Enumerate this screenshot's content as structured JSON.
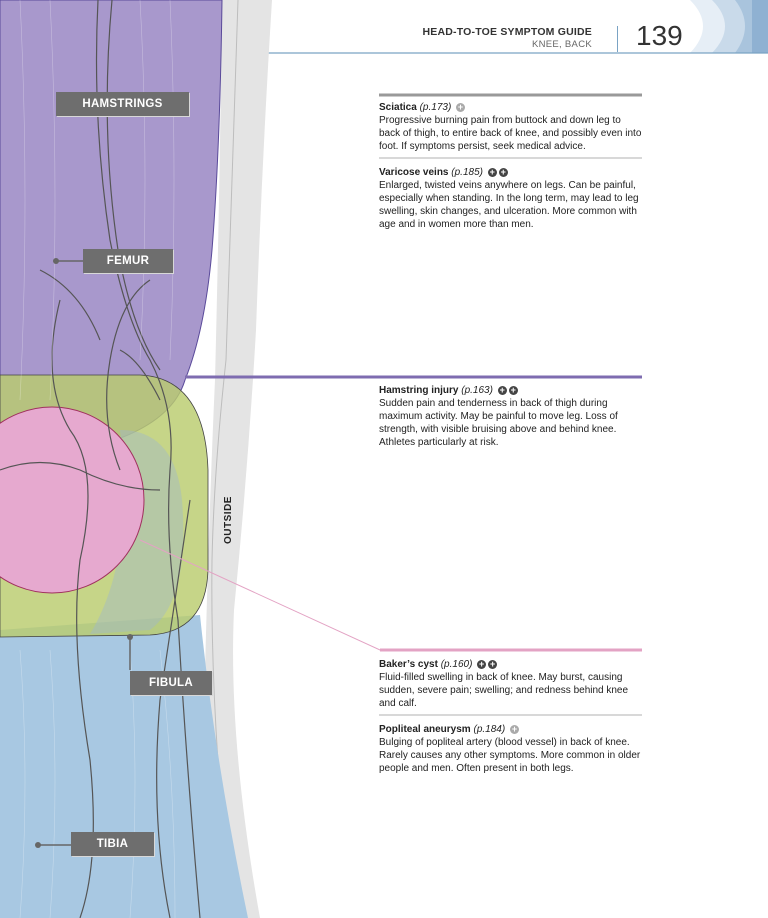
{
  "header": {
    "title": "HEAD-TO-TOE SYMPTOM GUIDE",
    "subtitle": "KNEE, BACK",
    "page_number": "139"
  },
  "illustration": {
    "labels": {
      "hamstrings": "HAMSTRINGS",
      "femur": "FEMUR",
      "fibula": "FIBULA",
      "tibia": "TIBIA",
      "outside": "OUTSIDE"
    },
    "colors": {
      "hamstrings": "#a898cc",
      "knee_green": "#b9cc6e",
      "cyst_pink": "#e6a9cf",
      "tibia_blue": "#a8c8e2",
      "label_bg": "#6e6e6e",
      "rule_grey": "#999999",
      "rule_purple": "#7e6cb0",
      "rule_pink": "#e3a3c4"
    }
  },
  "entries": [
    {
      "title": "Sciatica",
      "ref": "(p.173)",
      "icons": [
        "plus-grey"
      ],
      "text": "Progressive burning pain from buttock and down leg to back of thigh, to entire back of knee, and possibly even into foot. If symptoms persist, seek medical advice."
    },
    {
      "title": "Varicose veins",
      "ref": "(p.185)",
      "icons": [
        "plus-dark",
        "plus-dark"
      ],
      "text": "Enlarged, twisted veins anywhere on legs. Can be painful, especially when standing. In the long term, may lead to leg swelling, skin changes, and ulceration. More common with age and in women more than men."
    },
    {
      "title": "Hamstring injury",
      "ref": "(p.163)",
      "icons": [
        "plus-dark",
        "plus-dark"
      ],
      "text": "Sudden pain and tenderness in back of thigh during maximum activity. May be painful to move leg. Loss of strength, with visible bruising above and behind knee. Athletes particularly at risk."
    },
    {
      "title": "Baker’s cyst",
      "ref": "(p.160)",
      "icons": [
        "plus-dark",
        "plus-dark"
      ],
      "text": "Fluid-filled swelling in back of knee. May burst, causing sudden, severe pain; swelling; and redness behind knee and calf."
    },
    {
      "title": "Popliteal aneurysm",
      "ref": "(p.184)",
      "icons": [
        "plus-grey"
      ],
      "text": "Bulging of popliteal artery (blood vessel) in back of knee. Rarely causes any other symptoms. More common in older people and men. Often present in both legs."
    }
  ]
}
